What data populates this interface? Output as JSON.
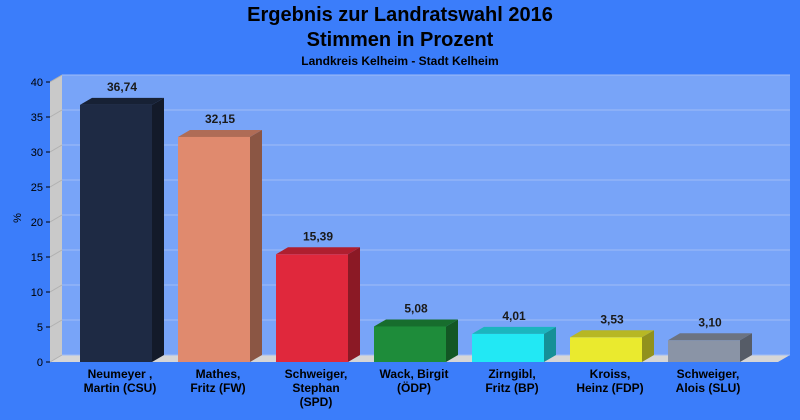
{
  "title": "Ergebnis zur Landratswahl 2016",
  "title2": "Stimmen in Prozent",
  "subtitle": "Landkreis Kelheim - Stadt Kelheim",
  "chart_data": {
    "type": "bar",
    "title": "Ergebnis zur Landratswahl 2016 Stimmen in Prozent",
    "subtitle": "Landkreis Kelheim - Stadt Kelheim",
    "ylabel": "%",
    "xlabel": "",
    "ylim": [
      0,
      40
    ],
    "yticks": [
      0,
      5,
      10,
      15,
      20,
      25,
      30,
      35,
      40
    ],
    "grid": true,
    "legend": "none",
    "categories": [
      [
        "Neumeyer ,",
        "Martin (CSU)"
      ],
      [
        "Mathes,",
        "Fritz (FW)"
      ],
      [
        "Schweiger,",
        "Stephan",
        "(SPD)"
      ],
      [
        "Wack, Birgit",
        "(ÖDP)"
      ],
      [
        "Zirngibl,",
        "Fritz (BP)"
      ],
      [
        "Kroiss,",
        "Heinz (FDP)"
      ],
      [
        "Schweiger,",
        "Alois (SLU)"
      ]
    ],
    "values": [
      36.74,
      32.15,
      15.39,
      5.08,
      4.01,
      3.53,
      3.1
    ],
    "value_labels": [
      "36,74",
      "32,15",
      "15,39",
      "5,08",
      "4,01",
      "3,53",
      "3,10"
    ],
    "colors": [
      "#1e2a44",
      "#e08a6e",
      "#e0283c",
      "#1e8c3a",
      "#22e8f4",
      "#eaea2e",
      "#8a94a6"
    ]
  }
}
